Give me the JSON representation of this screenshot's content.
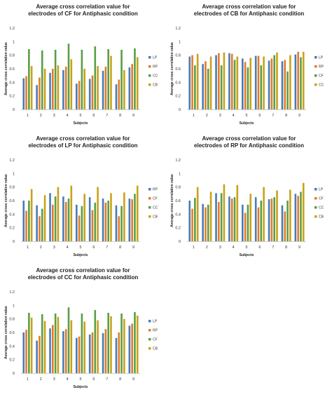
{
  "palette": [
    "#4a7bb7",
    "#e37b26",
    "#5a9e46",
    "#c9a21a"
  ],
  "chart_data": [
    {
      "type": "bar",
      "title": [
        "Average cross correlation value for",
        "electrodes of CF for Antiphasic condition"
      ],
      "xlabel": "Subjects",
      "ylabel": "Average cross correlation value",
      "categories": [
        "1",
        "2",
        "3",
        "4",
        "5",
        "6",
        "7",
        "8",
        "9"
      ],
      "ylim": [
        0,
        1.2
      ],
      "yticks": [
        "0",
        "0.2",
        "0.4",
        "0.6",
        "0.8",
        "1",
        "1.2"
      ],
      "legend_position": "right",
      "series": [
        {
          "name": "LP",
          "values": [
            0.46,
            0.36,
            0.54,
            0.58,
            0.38,
            0.45,
            0.57,
            0.37,
            0.62
          ]
        },
        {
          "name": "RP",
          "values": [
            0.49,
            0.47,
            0.6,
            0.63,
            0.42,
            0.5,
            0.63,
            0.44,
            0.67
          ]
        },
        {
          "name": "CC",
          "values": [
            0.89,
            0.87,
            0.88,
            0.97,
            0.88,
            0.93,
            0.89,
            0.88,
            0.9
          ]
        },
        {
          "name": "CB",
          "values": [
            0.64,
            0.6,
            0.65,
            0.74,
            0.6,
            0.64,
            0.79,
            0.58,
            0.77
          ]
        }
      ]
    },
    {
      "type": "bar",
      "title": [
        "Average cross correlation value for",
        "electrodes of CB for Antiphasic condition"
      ],
      "xlabel": "Subjects",
      "ylabel": "Average cross correlation value",
      "categories": [
        "1",
        "2",
        "3",
        "4",
        "5",
        "6",
        "7",
        "8",
        "9"
      ],
      "ylim": [
        0,
        1.2
      ],
      "yticks": [
        "0",
        "0.2",
        "0.4",
        "0.6",
        "0.8",
        "1",
        "1.2"
      ],
      "legend_position": "right",
      "series": [
        {
          "name": "LP",
          "values": [
            0.78,
            0.67,
            0.8,
            0.83,
            0.75,
            0.79,
            0.72,
            0.71,
            0.81
          ]
        },
        {
          "name": "RP",
          "values": [
            0.8,
            0.71,
            0.83,
            0.82,
            0.7,
            0.79,
            0.75,
            0.73,
            0.85
          ]
        },
        {
          "name": "CF",
          "values": [
            0.65,
            0.6,
            0.65,
            0.73,
            0.62,
            0.65,
            0.8,
            0.56,
            0.77
          ]
        },
        {
          "name": "CC",
          "values": [
            0.82,
            0.78,
            0.84,
            0.78,
            0.76,
            0.78,
            0.84,
            0.8,
            0.85
          ]
        }
      ]
    },
    {
      "type": "bar",
      "title": [
        "Average cross correlation value for",
        "electrodes of LP for Antiphasic condition"
      ],
      "xlabel": "Subjects",
      "ylabel": "Average cross correlation value",
      "categories": [
        "1",
        "2",
        "3",
        "4",
        "5",
        "6",
        "7",
        "8",
        "9"
      ],
      "ylim": [
        0,
        1.2
      ],
      "yticks": [
        "0",
        "0.2",
        "0.4",
        "0.6",
        "0.8",
        "1",
        "1.2"
      ],
      "legend_position": "right",
      "series": [
        {
          "name": "RP",
          "values": [
            0.6,
            0.53,
            0.71,
            0.66,
            0.54,
            0.65,
            0.63,
            0.53,
            0.63
          ]
        },
        {
          "name": "CF",
          "values": [
            0.45,
            0.37,
            0.54,
            0.58,
            0.38,
            0.46,
            0.57,
            0.37,
            0.62
          ]
        },
        {
          "name": "CC",
          "values": [
            0.6,
            0.48,
            0.66,
            0.63,
            0.52,
            0.57,
            0.6,
            0.52,
            0.7
          ]
        },
        {
          "name": "CB",
          "values": [
            0.77,
            0.68,
            0.8,
            0.82,
            0.7,
            0.8,
            0.71,
            0.72,
            0.82
          ]
        }
      ]
    },
    {
      "type": "bar",
      "title": [
        "Average cross correlation value for",
        "electrodes of RP for Antiphasic condition"
      ],
      "xlabel": "Subjects",
      "ylabel": "Average cross correlation value",
      "categories": [
        "1",
        "2",
        "3",
        "4",
        "5",
        "6",
        "7",
        "8",
        "9"
      ],
      "ylim": [
        0,
        1.2
      ],
      "yticks": [
        "0",
        "0.2",
        "0.4",
        "0.6",
        "0.8",
        "1",
        "1.2"
      ],
      "legend_position": "right",
      "series": [
        {
          "name": "LP",
          "values": [
            0.6,
            0.55,
            0.71,
            0.66,
            0.54,
            0.65,
            0.62,
            0.53,
            0.7
          ]
        },
        {
          "name": "CF",
          "values": [
            0.48,
            0.5,
            0.58,
            0.63,
            0.42,
            0.5,
            0.63,
            0.44,
            0.67
          ]
        },
        {
          "name": "CC",
          "values": [
            0.64,
            0.54,
            0.71,
            0.65,
            0.54,
            0.6,
            0.65,
            0.6,
            0.73
          ]
        },
        {
          "name": "CB",
          "values": [
            0.8,
            0.73,
            0.84,
            0.83,
            0.7,
            0.8,
            0.75,
            0.76,
            0.86
          ]
        }
      ]
    },
    {
      "type": "bar",
      "title": [
        "Average cross correlation value for",
        "electrodes of CC for Antiphasic condition"
      ],
      "xlabel": "Subjects",
      "ylabel": "Average cross correlation value",
      "categories": [
        "1",
        "2",
        "3",
        "4",
        "5",
        "6",
        "7",
        "8",
        "9"
      ],
      "ylim": [
        0,
        1.2
      ],
      "yticks": [
        "0",
        "0.2",
        "0.4",
        "0.6",
        "0.8",
        "1",
        "1.2"
      ],
      "legend_position": "right",
      "series": [
        {
          "name": "LP",
          "values": [
            0.6,
            0.48,
            0.66,
            0.62,
            0.52,
            0.57,
            0.59,
            0.52,
            0.7
          ]
        },
        {
          "name": "RP",
          "values": [
            0.64,
            0.55,
            0.71,
            0.65,
            0.54,
            0.6,
            0.65,
            0.6,
            0.73
          ]
        },
        {
          "name": "CF",
          "values": [
            0.89,
            0.87,
            0.88,
            0.97,
            0.88,
            0.93,
            0.89,
            0.88,
            0.9
          ]
        },
        {
          "name": "CB",
          "values": [
            0.82,
            0.77,
            0.83,
            0.78,
            0.76,
            0.78,
            0.84,
            0.8,
            0.85
          ]
        }
      ]
    }
  ]
}
